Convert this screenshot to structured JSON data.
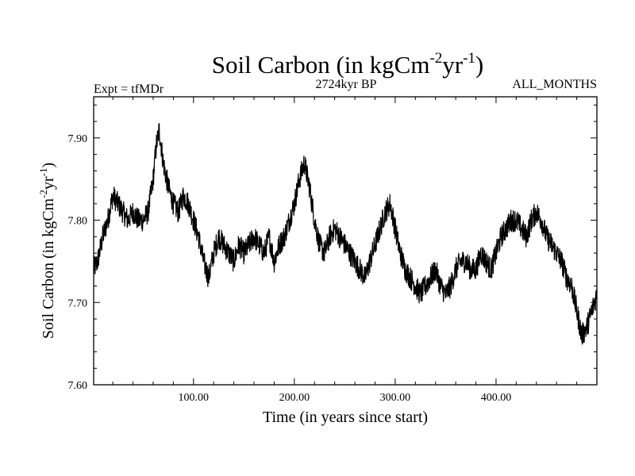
{
  "chart_data": {
    "type": "line",
    "title_main": "Soil Carbon (in kgCm",
    "title_exp1": "-2",
    "title_mid": "yr",
    "title_exp2": "-1",
    "title_end": ")",
    "subtitle_left": "Expt = tfMDr",
    "subtitle_center": "2724kyr BP",
    "subtitle_right": "ALL_MONTHS",
    "xlabel": "Time (in years since start)",
    "ylabel_main": "Soil Carbon (in kgCm",
    "ylabel_exp1": "-2",
    "ylabel_mid": "yr",
    "ylabel_exp2": "-1",
    "ylabel_end": ")",
    "xlim": [
      1,
      500
    ],
    "ylim": [
      7.6,
      7.95
    ],
    "x_ticks": [
      100,
      200,
      300,
      400
    ],
    "x_tick_labels": [
      "100.00",
      "200.00",
      "300.00",
      "400.00"
    ],
    "y_ticks": [
      7.6,
      7.7,
      7.8,
      7.9
    ],
    "y_tick_labels": [
      "7.60",
      "7.70",
      "7.80",
      "7.90"
    ],
    "series": [
      {
        "name": "Soil Carbon",
        "color": "#000000",
        "noise_amplitude": 0.014,
        "x": [
          1,
          5,
          10,
          15,
          20,
          25,
          30,
          35,
          40,
          45,
          50,
          55,
          60,
          63,
          66,
          70,
          75,
          80,
          85,
          90,
          95,
          100,
          105,
          110,
          115,
          120,
          125,
          130,
          135,
          140,
          145,
          150,
          155,
          160,
          165,
          170,
          175,
          180,
          185,
          190,
          195,
          200,
          205,
          210,
          215,
          220,
          225,
          230,
          235,
          240,
          245,
          250,
          255,
          260,
          265,
          270,
          275,
          280,
          285,
          290,
          295,
          300,
          305,
          310,
          315,
          320,
          325,
          330,
          335,
          340,
          345,
          350,
          355,
          360,
          365,
          370,
          375,
          380,
          385,
          390,
          395,
          400,
          405,
          410,
          415,
          420,
          425,
          430,
          435,
          440,
          445,
          450,
          455,
          460,
          465,
          470,
          475,
          480,
          485,
          490,
          495,
          500
        ],
        "y": [
          7.74,
          7.75,
          7.78,
          7.8,
          7.83,
          7.82,
          7.81,
          7.8,
          7.81,
          7.8,
          7.8,
          7.81,
          7.85,
          7.89,
          7.91,
          7.87,
          7.84,
          7.82,
          7.81,
          7.83,
          7.82,
          7.8,
          7.78,
          7.75,
          7.73,
          7.76,
          7.78,
          7.77,
          7.76,
          7.75,
          7.77,
          7.76,
          7.77,
          7.78,
          7.77,
          7.76,
          7.78,
          7.75,
          7.77,
          7.78,
          7.8,
          7.82,
          7.85,
          7.87,
          7.84,
          7.8,
          7.77,
          7.76,
          7.78,
          7.79,
          7.78,
          7.77,
          7.76,
          7.75,
          7.74,
          7.73,
          7.75,
          7.77,
          7.79,
          7.81,
          7.82,
          7.79,
          7.76,
          7.74,
          7.73,
          7.72,
          7.71,
          7.72,
          7.73,
          7.74,
          7.72,
          7.71,
          7.72,
          7.74,
          7.75,
          7.75,
          7.74,
          7.74,
          7.76,
          7.75,
          7.74,
          7.76,
          7.78,
          7.79,
          7.8,
          7.8,
          7.79,
          7.78,
          7.8,
          7.81,
          7.8,
          7.78,
          7.77,
          7.76,
          7.75,
          7.73,
          7.72,
          7.69,
          7.66,
          7.67,
          7.69,
          7.71
        ]
      }
    ]
  }
}
